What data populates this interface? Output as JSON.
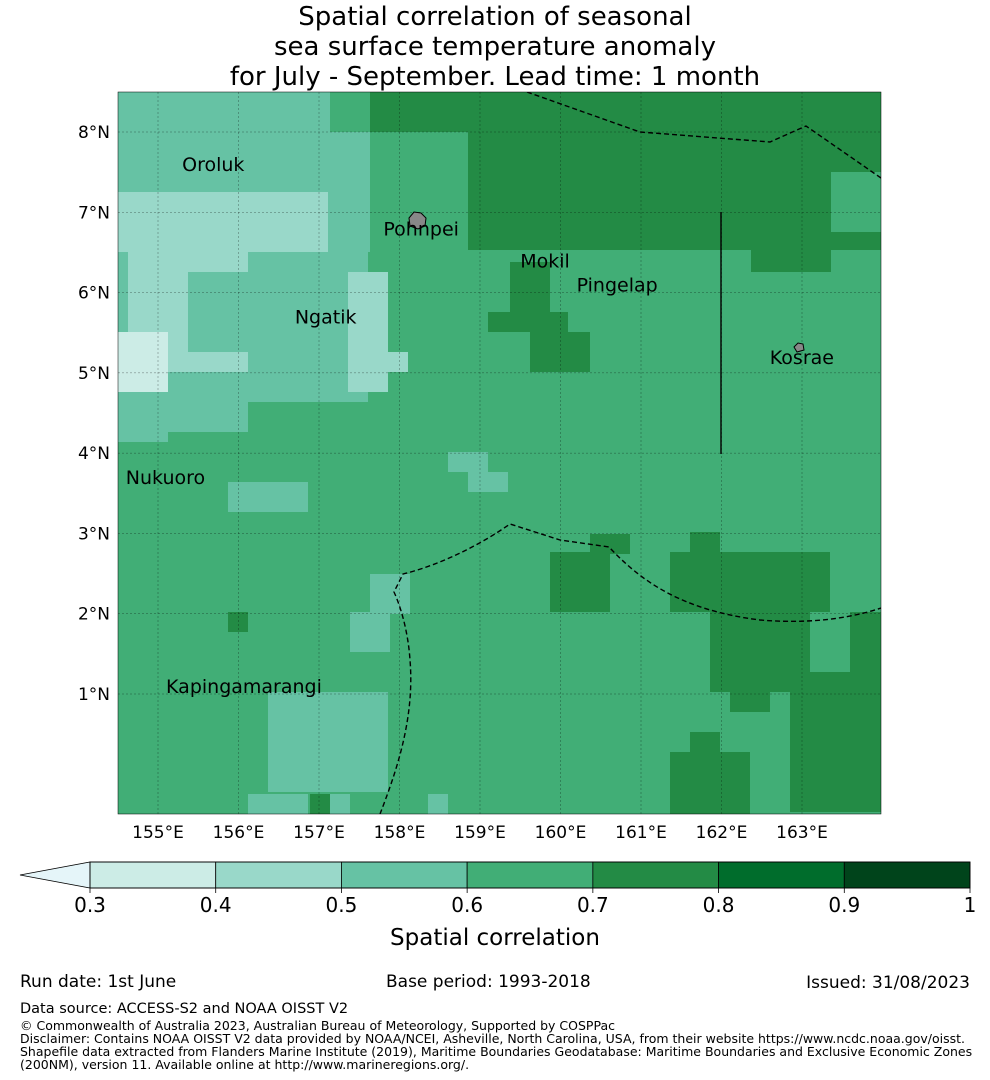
{
  "title": {
    "line1": "Spatial correlation of seasonal",
    "line2": "sea surface temperature anomaly",
    "line3": "for July - September. Lead time: 1 month"
  },
  "map": {
    "lon_ticks": [
      {
        "value": 155,
        "label": "155°E"
      },
      {
        "value": 156,
        "label": "156°E"
      },
      {
        "value": 157,
        "label": "157°E"
      },
      {
        "value": 158,
        "label": "158°E"
      },
      {
        "value": 159,
        "label": "159°E"
      },
      {
        "value": 160,
        "label": "160°E"
      },
      {
        "value": 161,
        "label": "161°E"
      },
      {
        "value": 162,
        "label": "162°E"
      },
      {
        "value": 163,
        "label": "163°E"
      }
    ],
    "lat_ticks": [
      {
        "value": 1,
        "label": "1°N"
      },
      {
        "value": 2,
        "label": "2°N"
      },
      {
        "value": 3,
        "label": "3°N"
      },
      {
        "value": 4,
        "label": "4°N"
      },
      {
        "value": 5,
        "label": "5°N"
      },
      {
        "value": 6,
        "label": "6°N"
      },
      {
        "value": 7,
        "label": "7°N"
      },
      {
        "value": 8,
        "label": "8°N"
      }
    ],
    "places": [
      {
        "name": "Oroluk",
        "lon": 155.3,
        "lat": 7.6
      },
      {
        "name": "Pohnpei",
        "lon": 157.8,
        "lat": 6.8
      },
      {
        "name": "Mokil",
        "lon": 159.5,
        "lat": 6.4
      },
      {
        "name": "Pingelap",
        "lon": 160.2,
        "lat": 6.1
      },
      {
        "name": "Ngatik",
        "lon": 156.7,
        "lat": 5.7
      },
      {
        "name": "Kosrae",
        "lon": 162.6,
        "lat": 5.2
      },
      {
        "name": "Nukuoro",
        "lon": 154.6,
        "lat": 3.7
      },
      {
        "name": "Kapingamarangi",
        "lon": 155.1,
        "lat": 1.1
      }
    ]
  },
  "colorbar": {
    "label": "Spatial correlation",
    "ticks": [
      "0.3",
      "0.4",
      "0.5",
      "0.6",
      "0.7",
      "0.8",
      "0.9",
      "1"
    ],
    "under_color": "#e5f5f9",
    "colors": [
      "#ccece6",
      "#99d8c9",
      "#66c2a4",
      "#41ae76",
      "#238b45",
      "#006d2c",
      "#00441b"
    ]
  },
  "footer": {
    "run_date": "Run date: 1st June",
    "base_period": "Base period: 1993-2018",
    "issued": "Issued: 31/08/2023",
    "data_source": "Data source: ACCESS-S2 and NOAA OISST V2",
    "copyright": "© Commonwealth of Australia 2023, Australian Bureau of Meteorology, Supported by COSPPac",
    "disclaimer1": "Disclaimer: Contains NOAA OISST V2 data provided by NOAA/NCEI, Asheville, North Carolina, USA, from their website https://www.ncdc.noaa.gov/oisst.",
    "disclaimer2": "Shapefile data extracted from Flanders Marine Institute (2019), Maritime Boundaries Geodatabase: Maritime Boundaries and Exclusive Economic Zones",
    "disclaimer3": "(200NM), version 11. Available online at http://www.marineregions.org/."
  }
}
